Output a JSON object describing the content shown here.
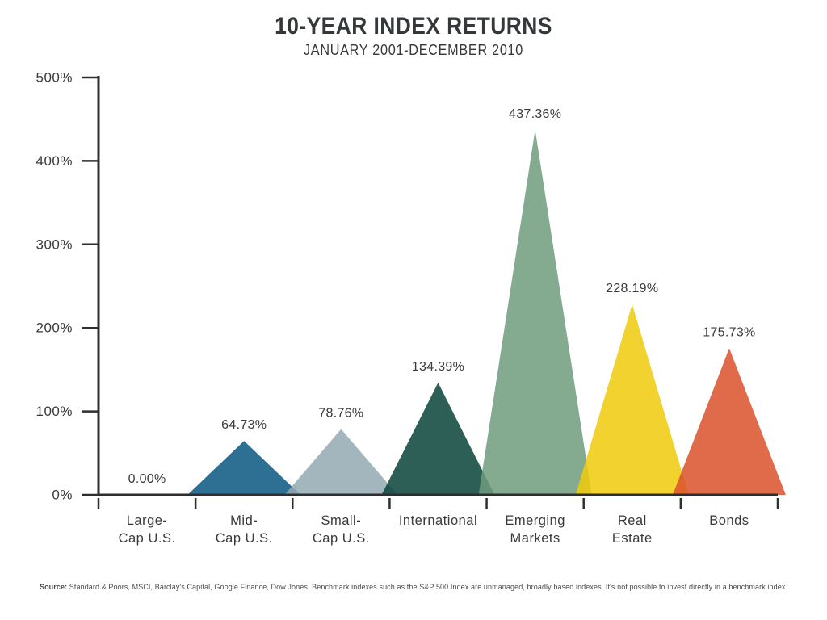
{
  "header": {
    "title": "10-YEAR INDEX RETURNS",
    "subtitle": "JANUARY 2001-DECEMBER 2010"
  },
  "chart_data": {
    "type": "bar",
    "mark": "triangle",
    "title": "10-YEAR INDEX RETURNS",
    "subtitle": "JANUARY 2001-DECEMBER 2010",
    "categories": [
      "Large-Cap U.S.",
      "Mid-Cap U.S.",
      "Small-Cap U.S.",
      "International",
      "Emerging Markets",
      "Real Estate",
      "Bonds"
    ],
    "tick_label_lines": [
      [
        "Large-",
        "Cap U.S."
      ],
      [
        "Mid-",
        "Cap U.S."
      ],
      [
        "Small-",
        "Cap U.S."
      ],
      [
        "International"
      ],
      [
        "Emerging",
        "Markets"
      ],
      [
        "Real",
        "Estate"
      ],
      [
        "Bonds"
      ]
    ],
    "values": [
      0.0,
      64.73,
      78.76,
      134.39,
      437.36,
      228.19,
      175.73
    ],
    "value_labels": [
      "0.00%",
      "64.73%",
      "78.76%",
      "134.39%",
      "437.36%",
      "228.19%",
      "175.73%"
    ],
    "colors": [
      null,
      "#2e6f94",
      "#a4b6bd",
      "#2e5f57",
      "#85ab90",
      "#f2d22e",
      "#e06b4c"
    ],
    "yticks": [
      "0%",
      "100%",
      "200%",
      "300%",
      "400%",
      "500%"
    ],
    "ylim": [
      0,
      500
    ],
    "xlabel": "",
    "ylabel": "",
    "grid": false,
    "legend": "none",
    "palette": {
      "axis": "#2e2e2e",
      "text": "#3a3a3a",
      "footer_text": "#4b4b4b"
    }
  },
  "footer": {
    "source_label": "Source:",
    "source_text": " Standard & Poors, MSCI, Barclay's Capital, Google Finance, Dow Jones. Benchmark indexes such as the S&P 500 Index are unmanaged, broadly based indexes. It's not possible to invest directly in a benchmark index."
  }
}
